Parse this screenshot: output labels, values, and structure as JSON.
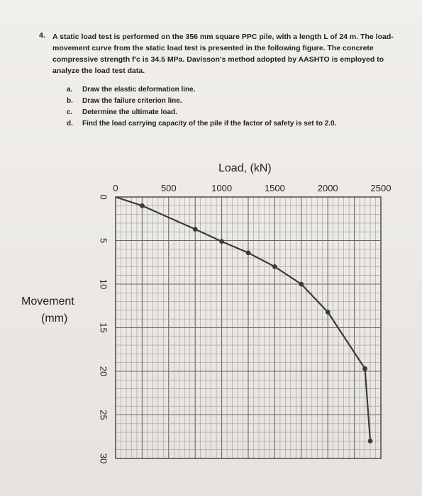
{
  "question": {
    "number": "4.",
    "lines": [
      "A static load test is performed on the 356 mm square PPC pile, with a length L of 24 m. The load-",
      "movement curve from the static load test is presented in the following figure. The concrete",
      "compressive strength f′c is 34.5 MPa. Davisson's method adopted by AASHTO is employed to",
      "analyze the load test data."
    ],
    "parts": [
      {
        "label": "a.",
        "text": "Draw the elastic deformation line."
      },
      {
        "label": "b.",
        "text": "Draw the failure criterion line."
      },
      {
        "label": "c.",
        "text": "Determine the ultimate load."
      },
      {
        "label": "d.",
        "text": "Find the load carrying capacity of the pile if the factor of safety is set to 2.0."
      }
    ]
  },
  "chart_data": {
    "type": "line",
    "title": "",
    "xlabel": "Load, (kN)",
    "ylabel_line1": "Movement",
    "ylabel_line2": "(mm)",
    "x_ticks": [
      "0",
      "500",
      "1000",
      "1500",
      "2000",
      "2500"
    ],
    "x_tick_values": [
      0,
      500,
      1000,
      1500,
      2000,
      2500
    ],
    "y_ticks": [
      "0",
      "5",
      "10",
      "15",
      "20",
      "25",
      "30"
    ],
    "y_tick_values": [
      0,
      5,
      10,
      15,
      20,
      25,
      30
    ],
    "xlim": [
      0,
      2500
    ],
    "ylim": [
      0,
      30
    ],
    "x_axis_position": "top",
    "y_axis_inverted": true,
    "grid": true,
    "series": [
      {
        "color": "#3a3a3a",
        "x": [
          0,
          250,
          750,
          1000,
          1250,
          1500,
          1750,
          2000,
          2350,
          2400
        ],
        "y": [
          0,
          1.0,
          3.7,
          5.1,
          6.4,
          8.0,
          10.0,
          13.2,
          19.7,
          28.0
        ]
      }
    ]
  }
}
